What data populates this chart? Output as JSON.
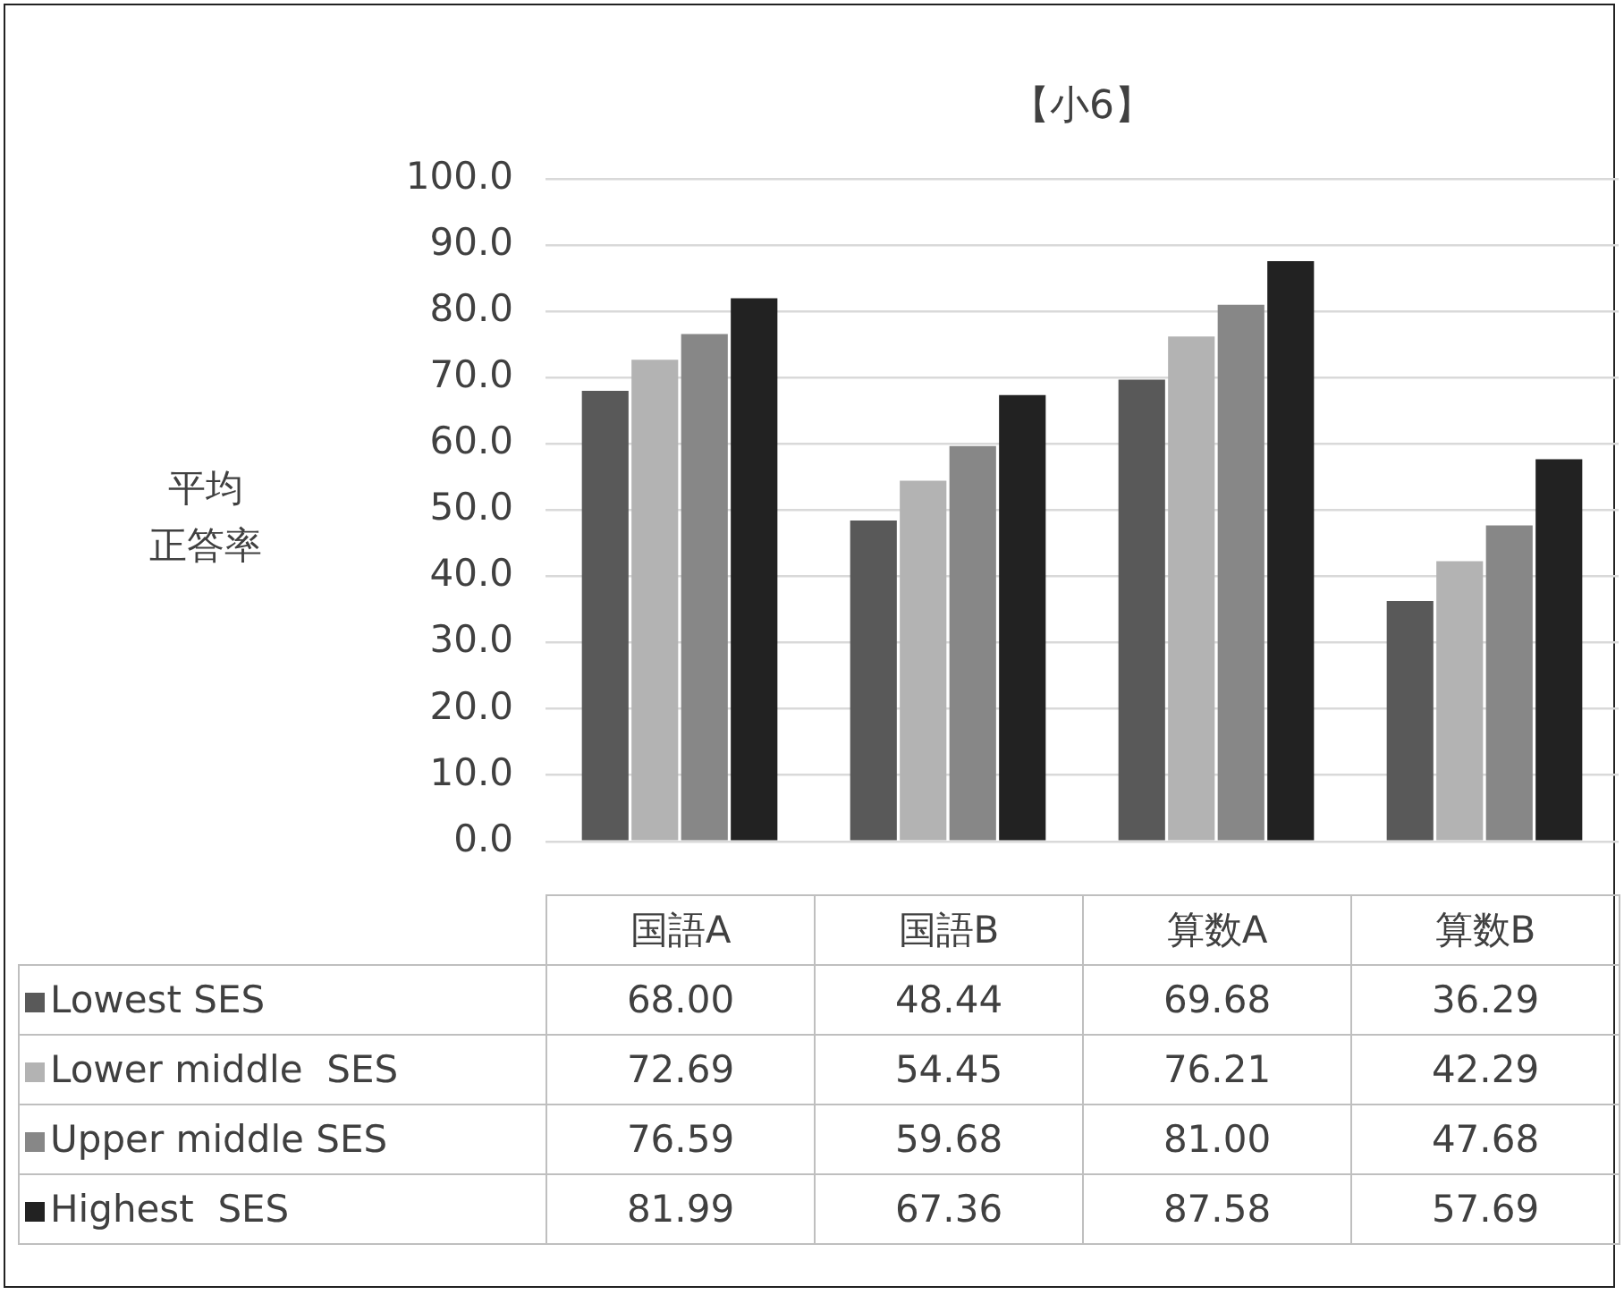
{
  "chart_data": {
    "type": "bar",
    "title": "【小6】",
    "ylabel": "平均正答率",
    "categories": [
      "国語A",
      "国語B",
      "算数A",
      "算数B"
    ],
    "ylim": [
      0,
      100
    ],
    "yticks": [
      {
        "value": 0,
        "label": "0.0"
      },
      {
        "value": 10,
        "label": "10.0"
      },
      {
        "value": 20,
        "label": "20.0"
      },
      {
        "value": 30,
        "label": "30.0"
      },
      {
        "value": 40,
        "label": "40.0"
      },
      {
        "value": 50,
        "label": "50.0"
      },
      {
        "value": 60,
        "label": "60.0"
      },
      {
        "value": 70,
        "label": "70.0"
      },
      {
        "value": 80,
        "label": "80.0"
      },
      {
        "value": 90,
        "label": "90.0"
      },
      {
        "value": 100,
        "label": "100.0"
      }
    ],
    "grid": "y",
    "legend": "bottom",
    "series": [
      {
        "name": "Lowest SES",
        "color": "#595959",
        "values": [
          68.0,
          48.44,
          69.68,
          36.29
        ],
        "value_labels": [
          "68.00",
          "48.44",
          "69.68",
          "36.29"
        ]
      },
      {
        "name": "Lower middle  SES",
        "color": "#b3b3b3",
        "values": [
          72.69,
          54.45,
          76.21,
          42.29
        ],
        "value_labels": [
          "72.69",
          "54.45",
          "76.21",
          "42.29"
        ]
      },
      {
        "name": "Upper middle SES",
        "color": "#878787",
        "values": [
          76.59,
          59.68,
          81.0,
          47.68
        ],
        "value_labels": [
          "76.59",
          "59.68",
          "81.00",
          "47.68"
        ]
      },
      {
        "name": "Highest  SES",
        "color": "#222222",
        "values": [
          81.99,
          67.36,
          87.58,
          57.69
        ],
        "value_labels": [
          "81.99",
          "67.36",
          "87.58",
          "57.69"
        ]
      }
    ]
  }
}
